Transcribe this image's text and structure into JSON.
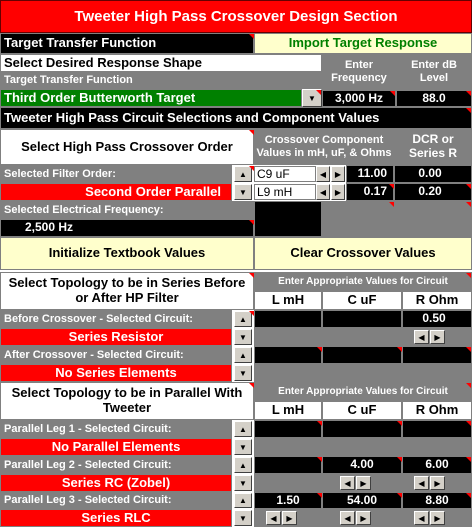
{
  "title": "Tweeter High Pass Crossover Design Section",
  "target": {
    "header": "Target Transfer Function",
    "import_button": "Import Target Response",
    "select_label": "Select Desired Response Shape",
    "enter_frequency": "Enter Frequency",
    "enter_db": "Enter dB Level",
    "ttf_label": "Target Transfer Function",
    "selected_shape": "Third Order Butterworth Target",
    "frequency": "3,000 Hz",
    "db_level": "88.0"
  },
  "circuit": {
    "header": "Tweeter High Pass Circuit Selections and Component Values",
    "order_label": "Select High Pass Crossover Order",
    "component_header": "Crossover Component Values in mH, uF, & Ohms",
    "dcr_header": "DCR or Series R",
    "filter_order_label": "Selected Filter Order:",
    "filter_order": "Second Order Parallel",
    "freq_label": "Selected Electrical Frequency:",
    "freq": "2,500 Hz",
    "components": [
      {
        "name": "C9  uF",
        "value": "11.00",
        "dcr": "0.00"
      },
      {
        "name": "L9 mH",
        "value": "0.17",
        "dcr": "0.20"
      }
    ]
  },
  "buttons": {
    "initialize": "Initialize Textbook Values",
    "clear": "Clear Crossover Values"
  },
  "series": {
    "header": "Select Topology to be in Series Before or After HP Filter",
    "enter_values": "Enter Appropriate Values for Circuit",
    "col_l": "L mH",
    "col_c": "C uF",
    "col_r": "R Ohm",
    "before_label": "Before Crossover - Selected Circuit:",
    "before_value": "Series Resistor",
    "before_r": "0.50",
    "after_label": "After Crossover - Selected Circuit:",
    "after_value": "No Series Elements"
  },
  "parallel": {
    "header": "Select Topology to be in Parallel With Tweeter",
    "enter_values": "Enter Appropriate Values for Circuit",
    "col_l": "L mH",
    "col_c": "C uF",
    "col_r": "R Ohm",
    "leg1_label": "Parallel Leg 1 - Selected Circuit:",
    "leg1_value": "No Parallel Elements",
    "leg2_label": "Parallel Leg 2 - Selected Circuit:",
    "leg2_value": "Series RC (Zobel)",
    "leg2_c": "4.00",
    "leg2_r": "6.00",
    "leg3_label": "Parallel Leg 3 - Selected Circuit:",
    "leg3_value": "Series RLC",
    "leg3_l": "1.50",
    "leg3_c": "54.00",
    "leg3_r": "8.80"
  }
}
